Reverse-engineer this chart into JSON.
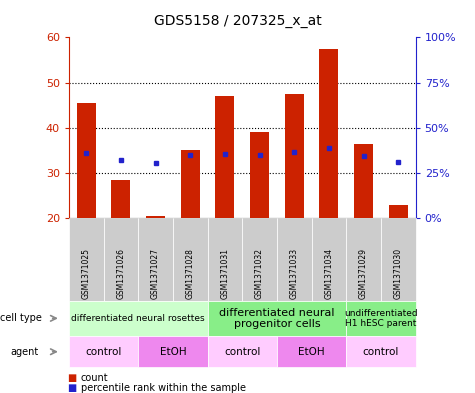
{
  "title": "GDS5158 / 207325_x_at",
  "samples": [
    "GSM1371025",
    "GSM1371026",
    "GSM1371027",
    "GSM1371028",
    "GSM1371031",
    "GSM1371032",
    "GSM1371033",
    "GSM1371034",
    "GSM1371029",
    "GSM1371030"
  ],
  "counts": [
    45.5,
    28.5,
    20.5,
    35.0,
    47.0,
    39.0,
    47.5,
    57.5,
    36.5,
    23.0
  ],
  "percentile_ranks": [
    36,
    32,
    30.5,
    35,
    35.5,
    35,
    36.5,
    39,
    34.5,
    31
  ],
  "ylim_left": [
    20,
    60
  ],
  "ylim_right": [
    0,
    100
  ],
  "yticks_left": [
    20,
    30,
    40,
    50,
    60
  ],
  "yticks_right": [
    0,
    25,
    50,
    75,
    100
  ],
  "ytick_labels_right": [
    "0%",
    "25%",
    "50%",
    "75%",
    "100%"
  ],
  "bar_color": "#CC2200",
  "marker_color": "#2222CC",
  "background_color": "#FFFFFF",
  "cell_type_groups": [
    {
      "label": "differentiated neural rosettes",
      "start": 0,
      "end": 4,
      "color": "#CCFFCC",
      "fontsize": 6.5
    },
    {
      "label": "differentiated neural\nprogenitor cells",
      "start": 4,
      "end": 8,
      "color": "#88EE88",
      "fontsize": 8
    },
    {
      "label": "undifferentiated\nH1 hESC parent",
      "start": 8,
      "end": 10,
      "color": "#88EE88",
      "fontsize": 6.5
    }
  ],
  "agent_groups": [
    {
      "label": "control",
      "start": 0,
      "end": 2,
      "color": "#FFCCFF"
    },
    {
      "label": "EtOH",
      "start": 2,
      "end": 4,
      "color": "#EE88EE"
    },
    {
      "label": "control",
      "start": 4,
      "end": 6,
      "color": "#FFCCFF"
    },
    {
      "label": "EtOH",
      "start": 6,
      "end": 8,
      "color": "#EE88EE"
    },
    {
      "label": "control",
      "start": 8,
      "end": 10,
      "color": "#FFCCFF"
    }
  ],
  "legend_count_label": "count",
  "legend_percentile_label": "percentile rank within the sample",
  "left_axis_color": "#CC2200",
  "right_axis_color": "#2222CC",
  "cell_type_label": "cell type",
  "agent_label": "agent",
  "sample_box_color": "#CCCCCC",
  "grid_yticks": [
    30,
    40,
    50
  ]
}
